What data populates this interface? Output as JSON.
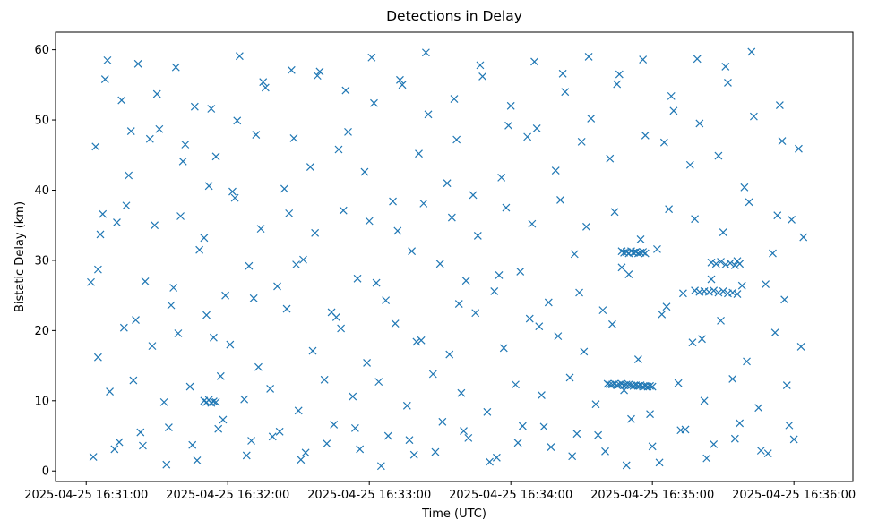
{
  "chart_data": {
    "type": "scatter",
    "title": "Detections in Delay",
    "xlabel": "Time (UTC)",
    "ylabel": "Bistatic Delay (km)",
    "x_tick_labels": [
      "2025-04-25 16:31:00",
      "2025-04-25 16:32:00",
      "2025-04-25 16:33:00",
      "2025-04-25 16:34:00",
      "2025-04-25 16:35:00",
      "2025-04-25 16:36:00"
    ],
    "y_ticks": [
      0,
      10,
      20,
      30,
      40,
      50,
      60
    ],
    "xlim": [
      "2025-04-25 16:30:47",
      "2025-04-25 16:36:25"
    ],
    "ylim": [
      -1.5,
      62.5
    ],
    "marker": "x",
    "color": "#1f77b4",
    "grid": false,
    "series": [
      {
        "x": [
          "2025-04-25 16:31:04",
          "2025-04-25 16:31:09",
          "2025-04-25 16:31:15",
          "2025-04-25 16:31:22",
          "2025-04-25 16:31:31",
          "2025-04-25 16:31:38",
          "2025-04-25 16:31:46",
          "2025-04-25 16:31:55",
          "2025-04-25 16:32:05",
          "2025-04-25 16:32:15",
          "2025-04-25 16:32:27",
          "2025-04-25 16:32:38",
          "2025-04-25 16:32:50",
          "2025-04-25 16:33:01",
          "2025-04-25 16:33:13",
          "2025-04-25 16:33:24",
          "2025-04-25 16:33:36",
          "2025-04-25 16:33:47",
          "2025-04-25 16:33:59",
          "2025-04-25 16:34:10",
          "2025-04-25 16:34:22",
          "2025-04-25 16:34:33",
          "2025-04-25 16:34:45",
          "2025-04-25 16:34:56",
          "2025-04-25 16:35:08",
          "2025-04-25 16:35:19",
          "2025-04-25 16:35:31",
          "2025-04-25 16:35:42",
          "2025-04-25 16:35:54",
          "2025-04-25 16:31:07",
          "2025-04-25 16:31:18",
          "2025-04-25 16:31:27",
          "2025-04-25 16:31:41",
          "2025-04-25 16:31:52",
          "2025-04-25 16:32:02",
          "2025-04-25 16:32:12",
          "2025-04-25 16:32:24",
          "2025-04-25 16:32:35",
          "2025-04-25 16:32:47",
          "2025-04-25 16:32:58",
          "2025-04-25 16:33:10",
          "2025-04-25 16:33:21",
          "2025-04-25 16:33:33",
          "2025-04-25 16:33:44",
          "2025-04-25 16:33:56",
          "2025-04-25 16:34:07",
          "2025-04-25 16:34:19",
          "2025-04-25 16:34:30",
          "2025-04-25 16:34:42",
          "2025-04-25 16:34:53",
          "2025-04-25 16:35:05",
          "2025-04-25 16:35:16",
          "2025-04-25 16:35:28",
          "2025-04-25 16:35:39",
          "2025-04-25 16:35:51",
          "2025-04-25 16:36:02",
          "2025-04-25 16:31:02",
          "2025-04-25 16:31:13",
          "2025-04-25 16:31:25",
          "2025-04-25 16:31:36",
          "2025-04-25 16:31:48",
          "2025-04-25 16:31:59",
          "2025-04-25 16:32:09",
          "2025-04-25 16:32:21",
          "2025-04-25 16:32:32",
          "2025-04-25 16:32:44",
          "2025-04-25 16:32:55",
          "2025-04-25 16:33:07",
          "2025-04-25 16:33:18",
          "2025-04-25 16:33:30",
          "2025-04-25 16:33:41",
          "2025-04-25 16:33:53",
          "2025-04-25 16:34:04",
          "2025-04-25 16:34:16",
          "2025-04-25 16:34:27",
          "2025-04-25 16:34:39",
          "2025-04-25 16:34:50",
          "2025-04-25 16:35:02",
          "2025-04-25 16:35:13",
          "2025-04-25 16:35:25",
          "2025-04-25 16:35:36",
          "2025-04-25 16:35:48",
          "2025-04-25 16:35:59",
          "2025-04-25 16:31:05",
          "2025-04-25 16:31:16",
          "2025-04-25 16:31:28",
          "2025-04-25 16:31:39",
          "2025-04-25 16:31:51",
          "2025-04-25 16:32:01",
          "2025-04-25 16:32:13",
          "2025-04-25 16:32:25",
          "2025-04-25 16:32:36",
          "2025-04-25 16:32:48",
          "2025-04-25 16:32:59",
          "2025-04-25 16:33:11",
          "2025-04-25 16:33:22",
          "2025-04-25 16:33:34",
          "2025-04-25 16:33:45",
          "2025-04-25 16:33:57",
          "2025-04-25 16:34:08",
          "2025-04-25 16:34:20",
          "2025-04-25 16:34:31",
          "2025-04-25 16:34:43",
          "2025-04-25 16:34:54",
          "2025-04-25 16:35:06",
          "2025-04-25 16:35:17",
          "2025-04-25 16:35:29",
          "2025-04-25 16:35:40",
          "2025-04-25 16:35:52",
          "2025-04-25 16:36:03",
          "2025-04-25 16:31:10",
          "2025-04-25 16:31:20",
          "2025-04-25 16:31:33",
          "2025-04-25 16:31:44",
          "2025-04-25 16:31:57",
          "2025-04-25 16:32:07",
          "2025-04-25 16:32:18",
          "2025-04-25 16:32:30",
          "2025-04-25 16:32:41",
          "2025-04-25 16:32:53",
          "2025-04-25 16:33:04",
          "2025-04-25 16:33:16",
          "2025-04-25 16:33:27",
          "2025-04-25 16:33:39",
          "2025-04-25 16:33:50",
          "2025-04-25 16:34:02",
          "2025-04-25 16:34:13",
          "2025-04-25 16:34:25",
          "2025-04-25 16:34:36",
          "2025-04-25 16:34:48",
          "2025-04-25 16:34:59",
          "2025-04-25 16:35:11",
          "2025-04-25 16:35:22",
          "2025-04-25 16:35:34",
          "2025-04-25 16:35:45",
          "2025-04-25 16:35:57",
          "2025-04-25 16:31:03",
          "2025-04-25 16:31:14",
          "2025-04-25 16:31:24",
          "2025-04-25 16:31:35",
          "2025-04-25 16:31:47",
          "2025-04-25 16:31:58",
          "2025-04-25 16:32:10",
          "2025-04-25 16:32:22",
          "2025-04-25 16:32:33",
          "2025-04-25 16:32:45",
          "2025-04-25 16:32:56",
          "2025-04-25 16:33:08",
          "2025-04-25 16:33:19",
          "2025-04-25 16:33:31",
          "2025-04-25 16:33:42",
          "2025-04-25 16:33:54",
          "2025-04-25 16:34:05",
          "2025-04-25 16:34:17",
          "2025-04-25 16:34:28",
          "2025-04-25 16:34:40",
          "2025-04-25 16:34:51",
          "2025-04-25 16:35:03",
          "2025-04-25 16:35:14",
          "2025-04-25 16:35:26",
          "2025-04-25 16:35:37",
          "2025-04-25 16:35:49",
          "2025-04-25 16:36:00",
          "2025-04-25 16:31:08",
          "2025-04-25 16:31:19",
          "2025-04-25 16:31:30",
          "2025-04-25 16:31:42",
          "2025-04-25 16:31:53",
          "2025-04-25 16:32:04",
          "2025-04-25 16:32:16",
          "2025-04-25 16:32:28",
          "2025-04-25 16:32:39",
          "2025-04-25 16:32:51",
          "2025-04-25 16:33:02",
          "2025-04-25 16:33:14",
          "2025-04-25 16:33:25",
          "2025-04-25 16:33:37",
          "2025-04-25 16:33:48",
          "2025-04-25 16:34:00",
          "2025-04-25 16:34:11",
          "2025-04-25 16:34:23",
          "2025-04-25 16:34:34",
          "2025-04-25 16:34:46",
          "2025-04-25 16:34:57",
          "2025-04-25 16:35:09",
          "2025-04-25 16:35:20",
          "2025-04-25 16:35:32",
          "2025-04-25 16:35:43",
          "2025-04-25 16:35:55",
          "2025-04-25 16:31:06",
          "2025-04-25 16:31:17",
          "2025-04-25 16:31:29",
          "2025-04-25 16:31:40",
          "2025-04-25 16:31:50",
          "2025-04-25 16:32:03",
          "2025-04-25 16:32:14",
          "2025-04-25 16:32:26",
          "2025-04-25 16:32:37",
          "2025-04-25 16:32:49",
          "2025-04-25 16:33:00",
          "2025-04-25 16:33:12",
          "2025-04-25 16:33:23",
          "2025-04-25 16:33:35",
          "2025-04-25 16:33:46",
          "2025-04-25 16:33:58",
          "2025-04-25 16:34:09",
          "2025-04-25 16:34:21",
          "2025-04-25 16:34:32",
          "2025-04-25 16:34:44",
          "2025-04-25 16:34:55",
          "2025-04-25 16:35:07",
          "2025-04-25 16:35:18",
          "2025-04-25 16:35:30",
          "2025-04-25 16:35:41",
          "2025-04-25 16:35:53",
          "2025-04-25 16:36:04",
          "2025-04-25 16:31:12",
          "2025-04-25 16:31:23",
          "2025-04-25 16:31:34",
          "2025-04-25 16:31:45",
          "2025-04-25 16:31:56",
          "2025-04-25 16:32:08",
          "2025-04-25 16:32:19",
          "2025-04-25 16:32:31",
          "2025-04-25 16:32:42",
          "2025-04-25 16:32:54",
          "2025-04-25 16:33:05",
          "2025-04-25 16:33:17",
          "2025-04-25 16:33:28",
          "2025-04-25 16:33:40",
          "2025-04-25 16:33:51",
          "2025-04-25 16:34:03",
          "2025-04-25 16:34:14",
          "2025-04-25 16:34:26",
          "2025-04-25 16:34:37",
          "2025-04-25 16:34:49",
          "2025-04-25 16:35:00",
          "2025-04-25 16:35:12",
          "2025-04-25 16:35:23",
          "2025-04-25 16:35:35",
          "2025-04-25 16:35:46",
          "2025-04-25 16:35:58",
          "2025-04-25 16:31:05",
          "2025-04-25 16:31:21",
          "2025-04-25 16:31:37",
          "2025-04-25 16:31:54",
          "2025-04-25 16:32:11",
          "2025-04-25 16:32:29",
          "2025-04-25 16:32:46",
          "2025-04-25 16:33:03",
          "2025-04-25 16:33:20",
          "2025-04-25 16:33:38",
          "2025-04-25 16:33:55",
          "2025-04-25 16:34:12",
          "2025-04-25 16:34:29",
          "2025-04-25 16:34:47",
          "2025-04-25 16:35:04",
          "2025-04-25 16:35:21",
          "2025-04-25 16:35:38",
          "2025-04-25 16:35:56",
          "2025-04-25 16:34:41",
          "2025-04-25 16:34:42",
          "2025-04-25 16:34:43",
          "2025-04-25 16:34:44",
          "2025-04-25 16:34:45",
          "2025-04-25 16:34:46",
          "2025-04-25 16:34:47",
          "2025-04-25 16:34:48",
          "2025-04-25 16:34:49",
          "2025-04-25 16:34:50",
          "2025-04-25 16:34:51",
          "2025-04-25 16:34:52",
          "2025-04-25 16:34:53",
          "2025-04-25 16:34:54",
          "2025-04-25 16:34:55",
          "2025-04-25 16:34:56",
          "2025-04-25 16:34:57",
          "2025-04-25 16:34:58",
          "2025-04-25 16:34:59",
          "2025-04-25 16:35:00",
          "2025-04-25 16:34:47",
          "2025-04-25 16:34:48",
          "2025-04-25 16:34:49",
          "2025-04-25 16:34:50",
          "2025-04-25 16:34:51",
          "2025-04-25 16:34:52",
          "2025-04-25 16:34:53",
          "2025-04-25 16:34:54",
          "2025-04-25 16:34:55",
          "2025-04-25 16:34:56",
          "2025-04-25 16:34:57",
          "2025-04-25 16:35:18",
          "2025-04-25 16:35:20",
          "2025-04-25 16:35:22",
          "2025-04-25 16:35:24",
          "2025-04-25 16:35:26",
          "2025-04-25 16:35:28",
          "2025-04-25 16:35:30",
          "2025-04-25 16:35:32",
          "2025-04-25 16:35:34",
          "2025-04-25 16:35:36",
          "2025-04-25 16:31:50",
          "2025-04-25 16:31:51",
          "2025-04-25 16:31:52",
          "2025-04-25 16:31:53",
          "2025-04-25 16:31:54",
          "2025-04-25 16:31:55",
          "2025-04-25 16:35:25",
          "2025-04-25 16:35:27",
          "2025-04-25 16:35:29",
          "2025-04-25 16:35:31",
          "2025-04-25 16:35:33",
          "2025-04-25 16:35:35",
          "2025-04-25 16:35:37"
        ],
        "y": [
          46.2,
          58.5,
          52.8,
          58.0,
          48.7,
          57.5,
          51.9,
          44.8,
          59.1,
          55.4,
          57.1,
          56.3,
          54.2,
          58.9,
          55.7,
          59.6,
          53.0,
          57.8,
          49.2,
          58.3,
          56.6,
          59.0,
          55.1,
          58.6,
          53.4,
          58.7,
          57.6,
          59.7,
          52.1,
          36.6,
          42.1,
          47.3,
          44.1,
          40.6,
          39.8,
          47.9,
          40.2,
          43.3,
          45.8,
          42.6,
          38.4,
          45.2,
          41.0,
          39.3,
          41.8,
          47.6,
          42.8,
          46.9,
          44.5,
          31.2,
          46.8,
          43.6,
          44.9,
          40.4,
          31.0,
          45.9,
          26.9,
          35.4,
          27.0,
          23.6,
          31.5,
          25.0,
          29.2,
          26.3,
          30.1,
          22.6,
          27.4,
          24.3,
          31.3,
          29.5,
          27.1,
          25.6,
          28.4,
          24.0,
          30.9,
          22.9,
          28.0,
          31.6,
          25.3,
          27.3,
          29.9,
          26.6,
          35.8,
          16.2,
          20.4,
          17.8,
          19.6,
          22.2,
          18.0,
          14.8,
          23.1,
          17.1,
          20.3,
          15.4,
          21.0,
          18.6,
          16.6,
          22.5,
          17.5,
          21.7,
          19.2,
          17.0,
          20.9,
          15.9,
          23.4,
          18.3,
          21.4,
          15.6,
          19.7,
          17.7,
          11.3,
          12.9,
          9.8,
          12.0,
          13.5,
          10.2,
          11.7,
          8.6,
          13.0,
          10.6,
          12.7,
          9.3,
          13.8,
          11.1,
          8.4,
          12.3,
          10.8,
          13.3,
          9.5,
          11.5,
          8.1,
          12.5,
          10.0,
          13.1,
          9.0,
          12.2,
          2.0,
          4.1,
          3.6,
          6.2,
          1.5,
          7.3,
          4.3,
          5.6,
          2.6,
          6.6,
          3.1,
          5.0,
          2.3,
          7.0,
          4.7,
          1.9,
          6.4,
          3.4,
          5.3,
          2.8,
          7.4,
          1.2,
          5.9,
          3.8,
          6.8,
          2.5,
          4.5,
          55.8,
          48.4,
          53.7,
          46.5,
          51.6,
          49.9,
          54.6,
          47.4,
          56.9,
          48.3,
          52.4,
          55.0,
          50.8,
          47.2,
          56.2,
          52.0,
          48.8,
          54.0,
          50.2,
          56.5,
          47.8,
          51.3,
          49.5,
          55.3,
          50.5,
          47.0,
          33.7,
          37.8,
          35.0,
          36.3,
          33.2,
          38.9,
          34.5,
          36.7,
          33.9,
          37.1,
          35.6,
          34.2,
          38.1,
          36.1,
          33.5,
          37.5,
          35.2,
          38.6,
          34.8,
          36.9,
          33.0,
          37.3,
          35.9,
          34.0,
          38.3,
          36.4,
          33.3,
          3.1,
          5.5,
          0.9,
          3.7,
          6.0,
          2.2,
          4.9,
          1.6,
          3.9,
          6.1,
          0.7,
          4.4,
          2.7,
          5.7,
          1.3,
          4.0,
          6.3,
          2.1,
          5.1,
          0.8,
          3.5,
          5.8,
          1.8,
          4.6,
          2.9,
          6.5,
          28.7,
          21.5,
          26.1,
          19.0,
          24.6,
          29.4,
          21.9,
          26.8,
          18.4,
          23.8,
          27.9,
          20.6,
          25.4,
          29.0,
          22.3,
          18.8,
          26.4,
          24.4,
          12.4,
          12.3,
          12.3,
          12.4,
          12.2,
          12.3,
          12.4,
          12.2,
          12.3,
          12.3,
          12.2,
          12.1,
          12.2,
          12.1,
          12.2,
          12.0,
          12.1,
          12.0,
          12.1,
          12.0,
          31.3,
          31.1,
          31.2,
          31.0,
          31.3,
          31.1,
          31.2,
          31.0,
          31.1,
          31.2,
          31.0,
          25.7,
          25.5,
          25.6,
          25.5,
          25.7,
          25.4,
          25.6,
          25.3,
          25.4,
          25.2,
          10.0,
          9.8,
          10.1,
          9.7,
          9.9,
          9.8,
          29.7,
          29.5,
          29.8,
          29.4,
          29.6,
          29.3,
          29.5
        ]
      }
    ]
  }
}
